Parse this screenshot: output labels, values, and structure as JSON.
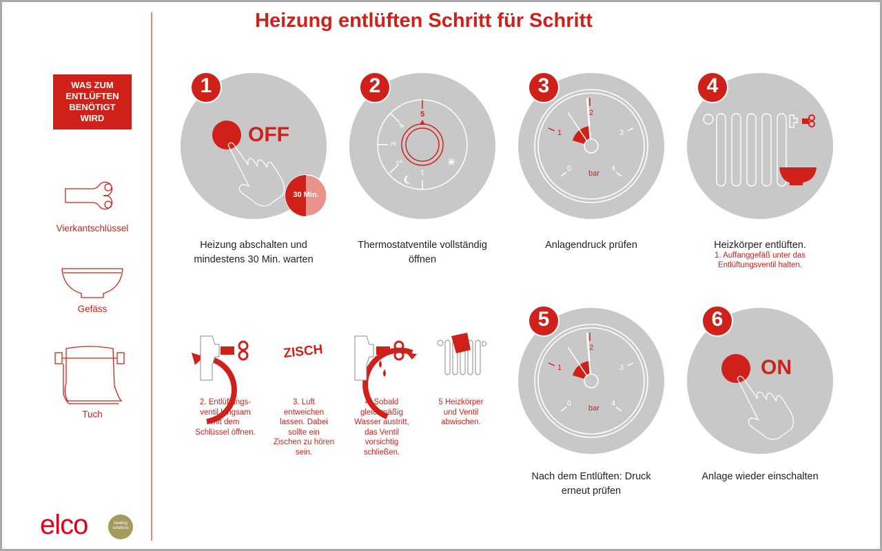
{
  "title": "Heizung entlüften Schritt für Schritt",
  "sidebar": {
    "heading": "WAS ZUM\nENTLÜFTEN\nBENÖTIGT\nWIRD",
    "items": [
      {
        "label": "Vierkantschlüssel",
        "icon": "square-key-icon"
      },
      {
        "label": "Gefäss",
        "icon": "bowl-icon"
      },
      {
        "label": "Tuch",
        "icon": "towel-icon"
      }
    ],
    "logo": {
      "brand": "elco",
      "tagline": "heating solutions"
    }
  },
  "steps": [
    {
      "number": "1",
      "caption": "Heizung abschalten und\nmindestens 30 Min. warten",
      "button_text": "OFF",
      "timer": "30 Min."
    },
    {
      "number": "2",
      "caption": "Thermostatventile vollständig\nöffnen",
      "dial_labels": [
        "5",
        "4",
        "3",
        "2",
        "1"
      ]
    },
    {
      "number": "3",
      "caption": "Anlagendruck prüfen",
      "gauge_labels": [
        "0",
        "1",
        "2",
        "3",
        "4"
      ],
      "unit": "bar"
    },
    {
      "number": "4",
      "caption": "Heizkörper entlüften.",
      "subcaption": "1. Auffanggefäß unter das\nEntlüftungsventil halten."
    },
    {
      "number": "5",
      "caption": "Nach dem Entlüften: Druck\nerneut prüfen",
      "gauge_labels": [
        "0",
        "1",
        "2",
        "3",
        "4"
      ],
      "unit": "bar"
    },
    {
      "number": "6",
      "caption": "Anlage wieder einschalten",
      "button_text": "ON"
    }
  ],
  "substeps": [
    {
      "text": "2. Entlüftungs-\nventil langsam\nmit dem\nSchlüssel öffnen."
    },
    {
      "text": "3. Luft\nentweichen\nlassen. Dabei\nsollte ein\nZischen zu hören\nsein.",
      "sound": "ZISCH"
    },
    {
      "text": "4. Sobald\ngleichmäßig\nWasser austritt,\ndas Ventil\nvorsichtig\nschließen."
    },
    {
      "text": "5 Heizkörper\nund Ventil\nabwischen."
    }
  ],
  "colors": {
    "accent": "#d0201a",
    "circle": "#c8c8c8",
    "logo_circle": "#a39a5c",
    "frame": "#a7a9ac"
  }
}
